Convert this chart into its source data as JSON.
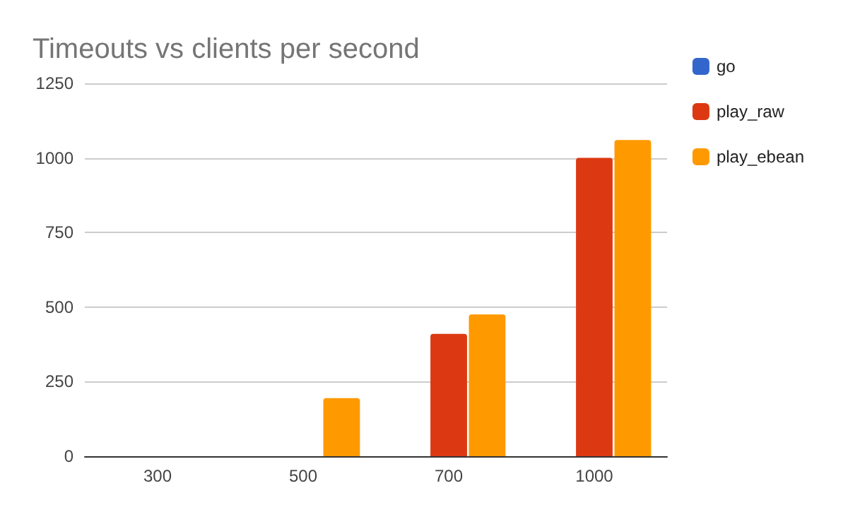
{
  "chart_data": {
    "type": "bar",
    "title": "Timeouts vs clients per second",
    "categories": [
      "300",
      "500",
      "700",
      "1000"
    ],
    "series": [
      {
        "name": "go",
        "color": "#3366cc",
        "values": [
          0,
          0,
          0,
          0
        ]
      },
      {
        "name": "play_raw",
        "color": "#dc3912",
        "values": [
          0,
          0,
          410,
          1000
        ]
      },
      {
        "name": "play_ebean",
        "color": "#ff9900",
        "values": [
          0,
          195,
          475,
          1060
        ]
      }
    ],
    "ylim": [
      0,
      1250
    ],
    "yticks": [
      0,
      250,
      500,
      750,
      1000,
      1250
    ],
    "grid": "y",
    "legend": "right"
  }
}
